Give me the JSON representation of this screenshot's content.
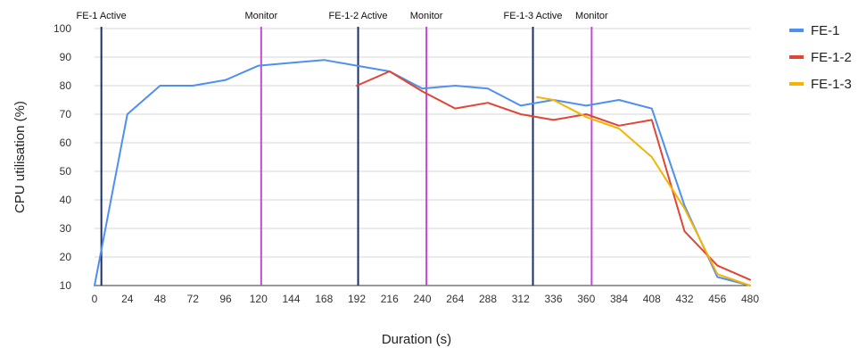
{
  "chart_data": {
    "type": "line",
    "xlabel": "Duration (s)",
    "ylabel": "CPU utilisation (%)",
    "xlim": [
      0,
      480
    ],
    "ylim": [
      10,
      100
    ],
    "xticks": [
      0,
      24,
      48,
      72,
      96,
      120,
      144,
      168,
      192,
      216,
      240,
      264,
      288,
      312,
      336,
      360,
      384,
      408,
      432,
      456,
      480
    ],
    "yticks": [
      10,
      20,
      30,
      40,
      50,
      60,
      70,
      80,
      90,
      100
    ],
    "grid": true,
    "legend_position": "right",
    "series": [
      {
        "name": "FE-1",
        "color": "#4f8ff0",
        "x": [
          0,
          24,
          48,
          72,
          96,
          120,
          144,
          168,
          192,
          216,
          240,
          264,
          288,
          312,
          336,
          360,
          384,
          408,
          432,
          456,
          480
        ],
        "y": [
          10,
          70,
          80,
          80,
          82,
          87,
          88,
          89,
          87,
          85,
          79,
          80,
          79,
          73,
          75,
          73,
          75,
          72,
          38,
          13,
          10
        ]
      },
      {
        "name": "FE-1-2",
        "color": "#e04535",
        "x": [
          192,
          216,
          240,
          264,
          288,
          312,
          336,
          360,
          384,
          408,
          432,
          456,
          480
        ],
        "y": [
          80,
          85,
          78,
          72,
          74,
          70,
          68,
          70,
          66,
          68,
          29,
          17,
          12
        ]
      },
      {
        "name": "FE-1-3",
        "color": "#f5b400",
        "x": [
          324,
          336,
          360,
          384,
          408,
          432,
          456,
          480
        ],
        "y": [
          76,
          75,
          69,
          65,
          55,
          37,
          14,
          10
        ]
      }
    ],
    "annotations": [
      {
        "label": "FE-1 Active",
        "x": 5,
        "color": "#1a2f6b"
      },
      {
        "label": "Monitor",
        "x": 122,
        "color": "#c04ad8"
      },
      {
        "label": "FE-1-2 Active",
        "x": 193,
        "color": "#1a2f6b"
      },
      {
        "label": "Monitor",
        "x": 243,
        "color": "#c04ad8"
      },
      {
        "label": "FE-1-3 Active",
        "x": 321,
        "color": "#1a2f6b"
      },
      {
        "label": "Monitor",
        "x": 364,
        "color": "#c04ad8"
      }
    ]
  }
}
